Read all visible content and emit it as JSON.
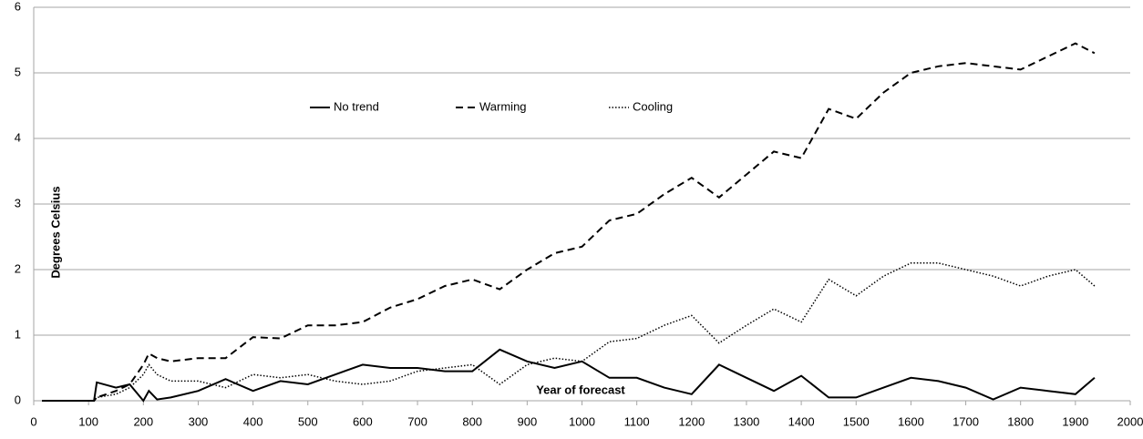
{
  "chart_data": {
    "type": "line",
    "ylabel": "Degrees Celsius",
    "xlabel": "Year of forecast",
    "x": [
      15,
      110,
      115,
      150,
      175,
      200,
      210,
      225,
      250,
      300,
      350,
      400,
      450,
      500,
      550,
      600,
      650,
      700,
      750,
      800,
      850,
      900,
      950,
      1000,
      1050,
      1100,
      1150,
      1200,
      1250,
      1300,
      1350,
      1400,
      1450,
      1500,
      1550,
      1600,
      1650,
      1700,
      1750,
      1800,
      1850,
      1900,
      1935
    ],
    "series": [
      {
        "name": "No trend",
        "color": "#000000",
        "dash": "solid",
        "values": [
          0,
          0,
          0.28,
          0.2,
          0.25,
          0,
          0.15,
          0.02,
          0.05,
          0.15,
          0.33,
          0.15,
          0.3,
          0.25,
          0.4,
          0.55,
          0.5,
          0.5,
          0.45,
          0.45,
          0.78,
          0.6,
          0.5,
          0.6,
          0.35,
          0.35,
          0.2,
          0.1,
          0.55,
          0.35,
          0.15,
          0.38,
          0.05,
          0.05,
          0.2,
          0.35,
          0.3,
          0.2,
          0.02,
          0.2,
          0.15,
          0.1,
          0.35
        ]
      },
      {
        "name": "Warming",
        "color": "#000000",
        "dash": "dashed",
        "values": [
          0,
          0,
          0.05,
          0.15,
          0.25,
          0.55,
          0.72,
          0.65,
          0.6,
          0.65,
          0.65,
          0.97,
          0.95,
          1.15,
          1.15,
          1.2,
          1.42,
          1.55,
          1.75,
          1.85,
          1.7,
          2.0,
          2.25,
          2.35,
          2.75,
          2.85,
          3.15,
          3.4,
          3.1,
          3.45,
          3.8,
          3.7,
          4.45,
          4.3,
          4.7,
          5.0,
          5.1,
          5.15,
          5.1,
          5.05,
          5.25,
          5.45,
          5.3
        ]
      },
      {
        "name": "Cooling",
        "color": "#000000",
        "dash": "dotted",
        "values": [
          0,
          0,
          0.05,
          0.1,
          0.2,
          0.4,
          0.55,
          0.4,
          0.3,
          0.3,
          0.2,
          0.4,
          0.35,
          0.4,
          0.3,
          0.25,
          0.3,
          0.45,
          0.5,
          0.55,
          0.25,
          0.55,
          0.65,
          0.6,
          0.9,
          0.95,
          1.15,
          1.3,
          0.88,
          1.15,
          1.4,
          1.2,
          1.85,
          1.6,
          1.9,
          2.1,
          2.1,
          2.0,
          1.9,
          1.75,
          1.9,
          2.0,
          1.75
        ]
      }
    ],
    "xlim": [
      0,
      2000
    ],
    "xticks": [
      0,
      100,
      200,
      300,
      400,
      500,
      600,
      700,
      800,
      900,
      1000,
      1100,
      1200,
      1300,
      1400,
      1500,
      1600,
      1700,
      1800,
      1900,
      2000
    ],
    "ylim": [
      0,
      6
    ],
    "yticks": [
      0,
      1,
      2,
      3,
      4,
      5,
      6
    ],
    "grid": true
  }
}
